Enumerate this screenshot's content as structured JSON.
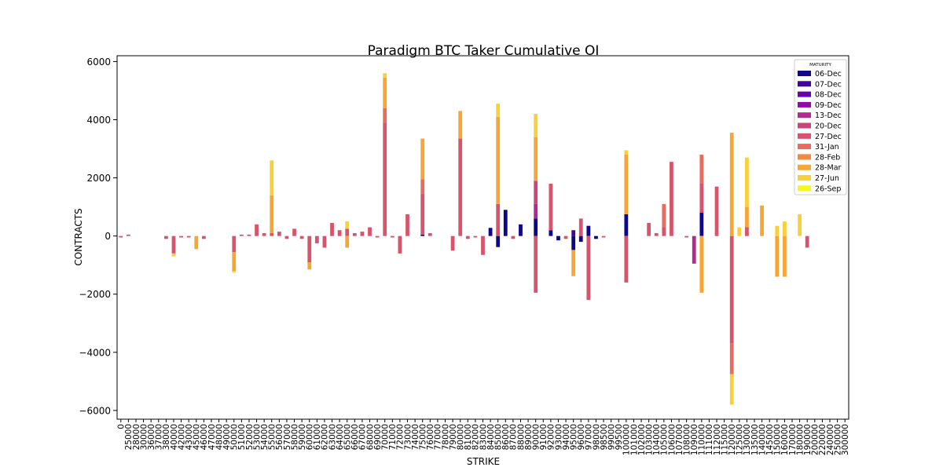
{
  "chart_data": {
    "type": "bar",
    "stacked": true,
    "title": "Paradigm BTC Taker Cumulative OI",
    "xlabel": "STRIKE",
    "ylabel": "CONTRACTS",
    "ylim": [
      -6300,
      6200
    ],
    "yticks": [
      -6000,
      -4000,
      -2000,
      0,
      2000,
      4000,
      6000
    ],
    "grid": false,
    "legend": {
      "title": "MATURITY",
      "placement": "top-right",
      "entries": [
        {
          "label": "06-Dec",
          "color": "#0d0887"
        },
        {
          "label": "07-Dec",
          "color": "#41049d"
        },
        {
          "label": "08-Dec",
          "color": "#6a00a8"
        },
        {
          "label": "09-Dec",
          "color": "#8f0da4"
        },
        {
          "label": "13-Dec",
          "color": "#b12a90"
        },
        {
          "label": "20-Dec",
          "color": "#cc4778"
        },
        {
          "label": "27-Dec",
          "color": "#d6556d"
        },
        {
          "label": "31-Jan",
          "color": "#e66c5c"
        },
        {
          "label": "28-Feb",
          "color": "#f48849"
        },
        {
          "label": "28-Mar",
          "color": "#f8a537"
        },
        {
          "label": "27-Jun",
          "color": "#f7d03c"
        },
        {
          "label": "26-Sep",
          "color": "#f0f921"
        }
      ]
    },
    "categories": [
      "0",
      "25000",
      "28000",
      "30000",
      "36000",
      "37000",
      "38000",
      "40000",
      "42000",
      "43000",
      "45000",
      "46000",
      "47000",
      "48000",
      "49000",
      "50000",
      "51000",
      "52000",
      "53000",
      "54000",
      "55000",
      "56000",
      "57000",
      "58000",
      "59000",
      "60000",
      "61000",
      "62000",
      "63000",
      "64000",
      "65000",
      "66000",
      "67000",
      "68000",
      "69000",
      "70000",
      "71000",
      "72000",
      "73000",
      "74000",
      "75000",
      "76000",
      "77000",
      "78000",
      "79000",
      "80000",
      "81000",
      "82000",
      "83000",
      "84000",
      "85000",
      "86000",
      "87000",
      "88000",
      "89000",
      "90000",
      "91000",
      "92000",
      "93000",
      "94000",
      "95000",
      "96000",
      "97000",
      "98000",
      "98500",
      "99000",
      "99500",
      "100000",
      "101000",
      "102000",
      "103000",
      "104000",
      "105000",
      "106000",
      "107000",
      "108000",
      "109000",
      "110000",
      "111000",
      "112000",
      "115000",
      "120000",
      "125000",
      "130000",
      "135000",
      "140000",
      "145000",
      "150000",
      "160000",
      "170000",
      "180000",
      "190000",
      "200000",
      "220000",
      "240000",
      "250000",
      "300000"
    ],
    "series": [
      {
        "name": "06-Dec",
        "values": [
          0,
          0,
          0,
          0,
          0,
          0,
          0,
          0,
          0,
          0,
          0,
          0,
          0,
          0,
          0,
          0,
          0,
          0,
          0,
          0,
          0,
          0,
          0,
          0,
          0,
          0,
          0,
          0,
          0,
          0,
          0,
          0,
          0,
          0,
          0,
          0,
          0,
          0,
          0,
          0,
          50,
          0,
          0,
          0,
          0,
          0,
          0,
          0,
          0,
          280,
          -380,
          900,
          0,
          400,
          0,
          600,
          0,
          200,
          -150,
          0,
          -480,
          -200,
          350,
          -100,
          0,
          0,
          0,
          750,
          0,
          0,
          0,
          0,
          0,
          0,
          0,
          0,
          0,
          800,
          0,
          0,
          0,
          0,
          0,
          0,
          0,
          0,
          0,
          0,
          0,
          0,
          0,
          0,
          0,
          0,
          0,
          0,
          0
        ]
      },
      {
        "name": "07-Dec",
        "values": [
          0,
          0,
          0,
          0,
          0,
          0,
          0,
          0,
          0,
          0,
          0,
          0,
          0,
          0,
          0,
          0,
          0,
          0,
          0,
          0,
          0,
          0,
          0,
          0,
          0,
          0,
          0,
          0,
          0,
          0,
          0,
          0,
          0,
          0,
          0,
          0,
          0,
          0,
          0,
          0,
          0,
          0,
          0,
          0,
          0,
          0,
          0,
          0,
          0,
          0,
          0,
          0,
          0,
          0,
          0,
          0,
          0,
          0,
          0,
          0,
          200,
          0,
          0,
          0,
          0,
          0,
          0,
          0,
          0,
          0,
          0,
          0,
          0,
          0,
          0,
          0,
          0,
          0,
          0,
          0,
          0,
          0,
          0,
          0,
          0,
          0,
          0,
          0,
          0,
          0,
          0,
          0,
          0,
          0,
          0,
          0,
          0
        ]
      },
      {
        "name": "08-Dec",
        "values": [
          0,
          0,
          0,
          0,
          0,
          0,
          0,
          0,
          0,
          0,
          0,
          0,
          0,
          0,
          0,
          0,
          0,
          0,
          0,
          0,
          0,
          0,
          0,
          0,
          0,
          0,
          0,
          0,
          0,
          0,
          0,
          0,
          0,
          0,
          0,
          0,
          0,
          0,
          0,
          0,
          0,
          0,
          0,
          0,
          0,
          0,
          0,
          0,
          0,
          0,
          0,
          0,
          0,
          0,
          0,
          0,
          0,
          0,
          0,
          0,
          0,
          0,
          0,
          0,
          0,
          0,
          0,
          0,
          0,
          0,
          0,
          0,
          0,
          0,
          0,
          0,
          0,
          0,
          0,
          0,
          0,
          0,
          0,
          0,
          0,
          0,
          0,
          0,
          0,
          0,
          0,
          0,
          0,
          0,
          0,
          0,
          0
        ]
      },
      {
        "name": "09-Dec",
        "values": [
          0,
          0,
          0,
          0,
          0,
          0,
          0,
          0,
          0,
          0,
          0,
          0,
          0,
          0,
          0,
          0,
          0,
          0,
          0,
          0,
          0,
          0,
          0,
          0,
          0,
          0,
          0,
          0,
          0,
          0,
          0,
          0,
          0,
          0,
          0,
          0,
          0,
          0,
          0,
          0,
          0,
          0,
          0,
          0,
          0,
          0,
          0,
          0,
          0,
          0,
          0,
          0,
          0,
          0,
          0,
          0,
          0,
          0,
          0,
          0,
          0,
          0,
          0,
          0,
          0,
          0,
          0,
          0,
          0,
          0,
          0,
          0,
          0,
          0,
          0,
          0,
          0,
          0,
          0,
          0,
          0,
          0,
          0,
          0,
          0,
          0,
          0,
          0,
          0,
          0,
          0,
          0,
          0,
          0,
          0,
          0,
          0
        ]
      },
      {
        "name": "13-Dec",
        "values": [
          0,
          0,
          0,
          0,
          0,
          0,
          0,
          0,
          0,
          0,
          0,
          0,
          0,
          0,
          0,
          0,
          0,
          0,
          0,
          0,
          0,
          0,
          0,
          0,
          0,
          0,
          0,
          0,
          0,
          0,
          0,
          0,
          0,
          0,
          0,
          0,
          0,
          0,
          0,
          0,
          0,
          0,
          0,
          0,
          0,
          0,
          0,
          0,
          0,
          0,
          0,
          0,
          0,
          0,
          0,
          500,
          0,
          0,
          0,
          0,
          0,
          0,
          0,
          0,
          0,
          0,
          0,
          0,
          0,
          0,
          0,
          0,
          0,
          0,
          0,
          0,
          -950,
          0,
          0,
          0,
          0,
          0,
          0,
          0,
          0,
          0,
          0,
          0,
          0,
          0,
          0,
          0,
          0,
          0,
          0,
          0,
          0
        ]
      },
      {
        "name": "20-Dec",
        "values": [
          0,
          0,
          0,
          0,
          0,
          0,
          0,
          0,
          0,
          0,
          0,
          0,
          0,
          0,
          0,
          0,
          0,
          0,
          0,
          0,
          0,
          0,
          0,
          0,
          0,
          0,
          0,
          0,
          0,
          0,
          0,
          0,
          0,
          0,
          0,
          0,
          0,
          0,
          0,
          0,
          0,
          0,
          0,
          0,
          0,
          0,
          0,
          0,
          0,
          0,
          0,
          0,
          0,
          0,
          0,
          800,
          0,
          0,
          0,
          0,
          0,
          0,
          0,
          0,
          0,
          0,
          0,
          0,
          0,
          0,
          0,
          0,
          0,
          0,
          0,
          0,
          0,
          0,
          0,
          0,
          0,
          0,
          0,
          0,
          0,
          0,
          0,
          0,
          0,
          0,
          0,
          0,
          0,
          0,
          0,
          0,
          0
        ]
      },
      {
        "name": "27-Dec",
        "values": [
          -50,
          50,
          0,
          0,
          0,
          0,
          -100,
          -600,
          -50,
          -50,
          0,
          -100,
          0,
          0,
          0,
          -550,
          50,
          50,
          400,
          100,
          100,
          150,
          -100,
          250,
          -100,
          -900,
          -250,
          -400,
          450,
          200,
          250,
          100,
          150,
          300,
          -50,
          3900,
          -50,
          -600,
          750,
          0,
          1400,
          100,
          0,
          0,
          -500,
          3350,
          -100,
          -50,
          -650,
          0,
          1100,
          0,
          -100,
          0,
          0,
          -1950,
          0,
          1600,
          0,
          -100,
          0,
          600,
          -2200,
          0,
          -50,
          0,
          0,
          -1600,
          0,
          0,
          450,
          100,
          300,
          2550,
          0,
          -50,
          0,
          1000,
          0,
          1700,
          0,
          -3700,
          0,
          300,
          0,
          0,
          0,
          0,
          0,
          0,
          0,
          -400,
          0,
          0,
          0,
          0,
          0
        ]
      },
      {
        "name": "31-Jan",
        "values": [
          0,
          0,
          0,
          0,
          0,
          0,
          0,
          0,
          0,
          0,
          0,
          0,
          0,
          0,
          0,
          0,
          0,
          0,
          0,
          0,
          0,
          0,
          0,
          0,
          0,
          0,
          0,
          0,
          0,
          0,
          0,
          0,
          0,
          0,
          0,
          500,
          0,
          0,
          0,
          0,
          500,
          0,
          0,
          0,
          0,
          0,
          0,
          0,
          0,
          0,
          0,
          0,
          0,
          0,
          0,
          0,
          0,
          0,
          0,
          0,
          0,
          0,
          0,
          0,
          0,
          0,
          0,
          0,
          0,
          0,
          0,
          0,
          800,
          0,
          0,
          0,
          0,
          1000,
          0,
          0,
          0,
          -1050,
          0,
          0,
          0,
          0,
          0,
          0,
          0,
          0,
          0,
          0,
          0,
          0,
          0,
          0,
          0
        ]
      },
      {
        "name": "28-Feb",
        "values": [
          0,
          0,
          0,
          0,
          0,
          0,
          0,
          0,
          0,
          0,
          0,
          0,
          0,
          0,
          0,
          0,
          0,
          0,
          0,
          0,
          0,
          0,
          0,
          0,
          0,
          0,
          0,
          0,
          0,
          0,
          0,
          0,
          0,
          0,
          0,
          0,
          0,
          0,
          0,
          0,
          0,
          0,
          0,
          0,
          0,
          0,
          0,
          0,
          0,
          0,
          0,
          0,
          0,
          0,
          0,
          0,
          0,
          0,
          0,
          0,
          0,
          0,
          0,
          0,
          0,
          0,
          0,
          0,
          0,
          0,
          0,
          0,
          0,
          0,
          0,
          0,
          0,
          0,
          0,
          0,
          0,
          0,
          0,
          0,
          0,
          0,
          0,
          0,
          0,
          0,
          0,
          0,
          0,
          0,
          0,
          0,
          0
        ]
      },
      {
        "name": "28-Mar",
        "values": [
          0,
          0,
          0,
          0,
          0,
          0,
          0,
          0,
          0,
          0,
          -450,
          0,
          0,
          0,
          0,
          -650,
          0,
          0,
          0,
          0,
          1300,
          0,
          0,
          0,
          0,
          -250,
          0,
          0,
          0,
          0,
          -400,
          0,
          0,
          0,
          0,
          1050,
          0,
          0,
          0,
          0,
          1400,
          0,
          0,
          0,
          0,
          950,
          0,
          0,
          0,
          0,
          3000,
          0,
          0,
          0,
          0,
          1500,
          0,
          0,
          0,
          0,
          -900,
          0,
          0,
          0,
          0,
          0,
          0,
          2050,
          0,
          0,
          0,
          0,
          0,
          0,
          0,
          0,
          0,
          -1950,
          0,
          0,
          0,
          3550,
          0,
          700,
          0,
          1050,
          0,
          -1400,
          -1400,
          0,
          0,
          0,
          0,
          0,
          0,
          0,
          0
        ]
      },
      {
        "name": "27-Jun",
        "values": [
          0,
          0,
          0,
          0,
          0,
          0,
          0,
          -100,
          0,
          0,
          0,
          0,
          0,
          0,
          0,
          -50,
          0,
          0,
          0,
          0,
          1200,
          0,
          0,
          0,
          0,
          0,
          0,
          0,
          0,
          0,
          250,
          0,
          0,
          0,
          0,
          150,
          0,
          0,
          0,
          0,
          0,
          0,
          0,
          0,
          0,
          0,
          0,
          0,
          0,
          0,
          450,
          0,
          0,
          0,
          0,
          800,
          0,
          0,
          0,
          0,
          0,
          0,
          0,
          0,
          0,
          0,
          0,
          150,
          0,
          0,
          0,
          0,
          0,
          0,
          0,
          0,
          0,
          0,
          0,
          0,
          0,
          -1050,
          300,
          1700,
          0,
          0,
          0,
          350,
          500,
          0,
          750,
          0,
          0,
          0,
          0,
          0,
          0
        ]
      },
      {
        "name": "26-Sep",
        "values": [
          0,
          0,
          0,
          0,
          0,
          0,
          0,
          0,
          0,
          0,
          0,
          0,
          0,
          0,
          0,
          0,
          0,
          0,
          0,
          0,
          0,
          0,
          0,
          0,
          0,
          0,
          0,
          0,
          0,
          0,
          0,
          0,
          0,
          0,
          0,
          0,
          0,
          0,
          0,
          0,
          0,
          0,
          0,
          0,
          0,
          0,
          0,
          0,
          0,
          0,
          0,
          0,
          0,
          0,
          0,
          0,
          0,
          0,
          0,
          0,
          0,
          0,
          0,
          0,
          0,
          0,
          0,
          0,
          0,
          0,
          0,
          0,
          0,
          0,
          0,
          0,
          0,
          0,
          0,
          0,
          0,
          0,
          0,
          0,
          0,
          0,
          0,
          0,
          0,
          0,
          0,
          0,
          0,
          0,
          0,
          0,
          0
        ]
      }
    ]
  }
}
